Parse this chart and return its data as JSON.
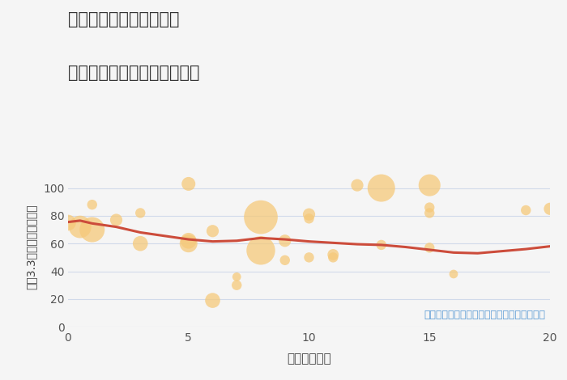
{
  "title_line1": "三重県伊賀市佐那具町の",
  "title_line2": "駅距離別中古マンション価格",
  "xlabel": "駅距離（分）",
  "ylabel": "坪（3.3㎡）単価（万円）",
  "background_color": "#f5f5f5",
  "plot_bg_color": "#f5f5f5",
  "bubble_color": "#f5c97a",
  "bubble_alpha": 0.75,
  "bubble_edge_color": "none",
  "trend_color": "#cc4c3b",
  "trend_linewidth": 2.2,
  "xlim": [
    0,
    20
  ],
  "ylim": [
    0,
    115
  ],
  "yticks": [
    0,
    20,
    40,
    60,
    80,
    100
  ],
  "grid_color": "#c8d4e8",
  "grid_alpha": 0.8,
  "annotation": "円の大きさは、取引のあった物件面積を示す",
  "annotation_color": "#5b9bd5",
  "annotation_fontsize": 9,
  "scatter_x": [
    0,
    0.5,
    1,
    1,
    2,
    3,
    3,
    5,
    5,
    5,
    6,
    6,
    7,
    7,
    8,
    8,
    9,
    9,
    10,
    10,
    10,
    11,
    11,
    12,
    13,
    13,
    15,
    15,
    15,
    15,
    16,
    19,
    20
  ],
  "scatter_y": [
    75,
    72,
    88,
    70,
    77,
    82,
    60,
    103,
    62,
    60,
    69,
    19,
    30,
    36,
    79,
    55,
    62,
    48,
    81,
    78,
    50,
    52,
    50,
    102,
    100,
    59,
    102,
    86,
    82,
    57,
    38,
    84,
    85
  ],
  "scatter_size": [
    200,
    400,
    80,
    500,
    120,
    80,
    180,
    150,
    200,
    250,
    120,
    180,
    80,
    60,
    900,
    650,
    120,
    80,
    120,
    80,
    80,
    100,
    80,
    120,
    600,
    80,
    380,
    80,
    80,
    80,
    60,
    80,
    120
  ],
  "trend_x": [
    0,
    0.5,
    1,
    2,
    3,
    4,
    5,
    6,
    7,
    8,
    9,
    10,
    11,
    12,
    13,
    14,
    15,
    16,
    17,
    18,
    19,
    20
  ],
  "trend_y": [
    75.5,
    76.5,
    74.5,
    72.0,
    68.0,
    65.5,
    63.0,
    61.5,
    62.0,
    64.0,
    63.0,
    61.5,
    60.5,
    59.5,
    59.0,
    57.5,
    55.5,
    53.5,
    53.0,
    54.5,
    56.0,
    58.0
  ]
}
